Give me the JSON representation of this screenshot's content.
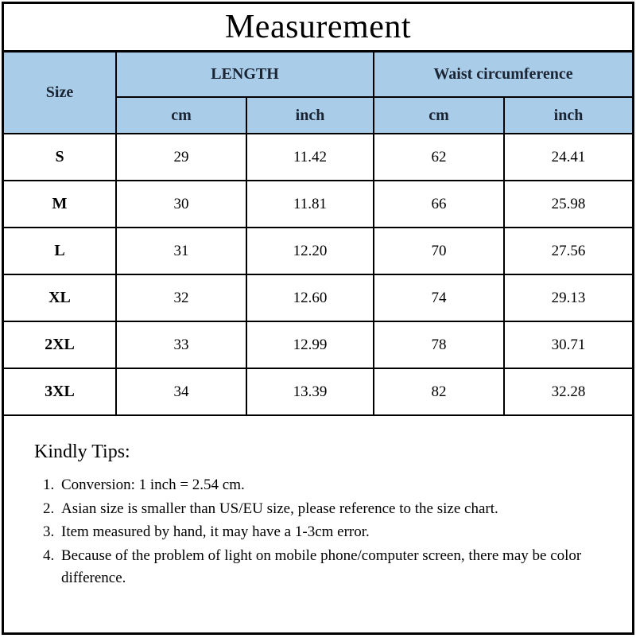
{
  "title": "Measurement",
  "table": {
    "size_header": "Size",
    "groups": [
      {
        "label": "LENGTH",
        "sub": [
          "cm",
          "inch"
        ]
      },
      {
        "label": "Waist circumference",
        "sub": [
          "cm",
          "inch"
        ]
      }
    ],
    "rows": [
      {
        "size": "S",
        "cells": [
          "29",
          "11.42",
          "62",
          "24.41"
        ]
      },
      {
        "size": "M",
        "cells": [
          "30",
          "11.81",
          "66",
          "25.98"
        ]
      },
      {
        "size": "L",
        "cells": [
          "31",
          "12.20",
          "70",
          "27.56"
        ]
      },
      {
        "size": "XL",
        "cells": [
          "32",
          "12.60",
          "74",
          "29.13"
        ]
      },
      {
        "size": "2XL",
        "cells": [
          "33",
          "12.99",
          "78",
          "30.71"
        ]
      },
      {
        "size": "3XL",
        "cells": [
          "34",
          "13.39",
          "82",
          "32.28"
        ]
      }
    ]
  },
  "tips": {
    "title": "Kindly Tips:",
    "items": [
      "Conversion: 1 inch = 2.54 cm.",
      "Asian size is smaller than US/EU size, please reference to the size chart.",
      "Item measured by hand, it may have a 1-3cm error.",
      "Because of the problem of light on mobile phone/computer screen, there may be color difference."
    ]
  },
  "colors": {
    "header_bg": "#a9cde9",
    "header_text": "#1b2433",
    "border": "#000000",
    "background": "#ffffff"
  },
  "chart_data": {
    "type": "table",
    "title": "Measurement",
    "columns": [
      "Size",
      "LENGTH cm",
      "LENGTH inch",
      "Waist circumference cm",
      "Waist circumference inch"
    ],
    "rows": [
      [
        "S",
        29,
        11.42,
        62,
        24.41
      ],
      [
        "M",
        30,
        11.81,
        66,
        25.98
      ],
      [
        "L",
        31,
        12.2,
        70,
        27.56
      ],
      [
        "XL",
        32,
        12.6,
        74,
        29.13
      ],
      [
        "2XL",
        33,
        12.99,
        78,
        30.71
      ],
      [
        "3XL",
        34,
        13.39,
        82,
        32.28
      ]
    ]
  }
}
